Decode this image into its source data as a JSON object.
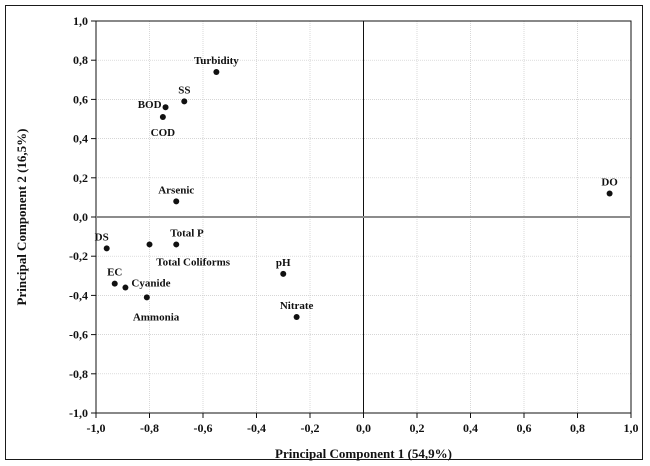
{
  "chart_data": {
    "type": "scatter",
    "title": "",
    "xlabel": "Principal Component 1 (54,9%)",
    "ylabel": "Principal Component 2 (16,5%)",
    "xlim": [
      -1.0,
      1.0
    ],
    "ylim": [
      -1.0,
      1.0
    ],
    "x_ticks": [
      "-1,0",
      "-0,8",
      "-0,6",
      "-0,4",
      "-0,2",
      "0,0",
      "0,2",
      "0,4",
      "0,6",
      "0,8",
      "1,0"
    ],
    "y_ticks": [
      "1,0",
      "0,8",
      "0,6",
      "0,4",
      "0,2",
      "0,0",
      "-0,2",
      "-0,4",
      "-0,6",
      "-0,8",
      "-1,0"
    ],
    "grid": true,
    "reference_lines": {
      "x": 0.0,
      "y": 0.0
    },
    "colors": {
      "point": "#111111",
      "grid": "#c8c8c8",
      "axis": "#111111",
      "zero_h": "#8c8c8c"
    },
    "points": [
      {
        "label": "Turbidity",
        "x": -0.55,
        "y": 0.74,
        "label_pos": "above"
      },
      {
        "label": "SS",
        "x": -0.67,
        "y": 0.59,
        "label_pos": "above-right"
      },
      {
        "label": "BOD",
        "x": -0.74,
        "y": 0.56,
        "label_pos": "left"
      },
      {
        "label": "COD",
        "x": -0.75,
        "y": 0.51,
        "label_pos": "below"
      },
      {
        "label": "Arsenic",
        "x": -0.7,
        "y": 0.08,
        "label_pos": "above"
      },
      {
        "label": "DS",
        "x": -0.96,
        "y": -0.16,
        "label_pos": "above-left"
      },
      {
        "label": "Total P",
        "x": -0.7,
        "y": -0.14,
        "label_pos": "above-right"
      },
      {
        "label": "",
        "x": -0.8,
        "y": -0.14,
        "label_pos": "none"
      },
      {
        "label": "Total Coliforms",
        "x": -0.7,
        "y": -0.14,
        "label_pos": "below-text"
      },
      {
        "label": "EC",
        "x": -0.93,
        "y": -0.34,
        "label_pos": "above"
      },
      {
        "label": "Cyanide",
        "x": -0.89,
        "y": -0.36,
        "label_pos": "right"
      },
      {
        "label": "Ammonia",
        "x": -0.81,
        "y": -0.41,
        "label_pos": "below-right"
      },
      {
        "label": "pH",
        "x": -0.3,
        "y": -0.29,
        "label_pos": "above"
      },
      {
        "label": "Nitrate",
        "x": -0.25,
        "y": -0.51,
        "label_pos": "above"
      },
      {
        "label": "DO",
        "x": 0.92,
        "y": 0.12,
        "label_pos": "above"
      }
    ]
  }
}
